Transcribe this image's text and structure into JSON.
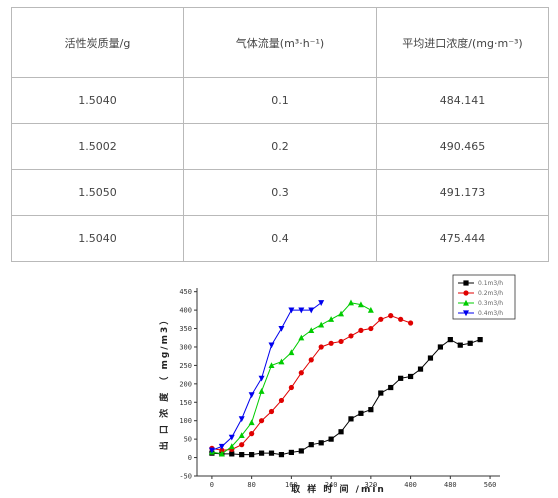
{
  "table": {
    "headers": [
      "活性炭质量/g",
      "气体流量(m³·h⁻¹)",
      "平均进口浓度/(mg·m⁻³)"
    ],
    "rows": [
      [
        "1.5040",
        "0.1",
        "484.141"
      ],
      [
        "1.5002",
        "0.2",
        "490.465"
      ],
      [
        "1.5050",
        "0.3",
        "491.173"
      ],
      [
        "1.5040",
        "0.4",
        "475.444"
      ]
    ]
  },
  "chart_data": {
    "type": "line",
    "xlabel": "取 样 时 间 /min",
    "ylabel": "出 口 浓 度 （ mg/m3）",
    "xlim": [
      -30,
      580
    ],
    "ylim": [
      -50,
      460
    ],
    "xticks": [
      "0",
      "80",
      "160",
      "240",
      "320",
      "400",
      "480",
      "560"
    ],
    "yticks": [
      "-50",
      "0",
      "50",
      "100",
      "150",
      "200",
      "250",
      "300",
      "350",
      "400",
      "450"
    ],
    "legend_position": "top-right",
    "series": [
      {
        "name": "0.1m3/h",
        "color": "#000000",
        "marker": "square",
        "x": [
          0,
          20,
          40,
          60,
          80,
          100,
          120,
          140,
          160,
          180,
          200,
          220,
          240,
          260,
          280,
          300,
          320,
          340,
          360,
          380,
          400,
          420,
          440,
          460,
          480,
          500,
          520,
          540
        ],
        "y": [
          12,
          10,
          10,
          8,
          8,
          12,
          12,
          8,
          14,
          18,
          35,
          40,
          50,
          70,
          105,
          120,
          130,
          175,
          190,
          215,
          220,
          240,
          270,
          300,
          320,
          305,
          310,
          320
        ]
      },
      {
        "name": "0.2m3/h",
        "color": "#e00000",
        "marker": "circle",
        "x": [
          0,
          20,
          40,
          60,
          80,
          100,
          120,
          140,
          160,
          180,
          200,
          220,
          240,
          260,
          280,
          300,
          320,
          340,
          360,
          380,
          400
        ],
        "y": [
          25,
          20,
          22,
          35,
          65,
          100,
          125,
          155,
          190,
          230,
          265,
          300,
          310,
          315,
          330,
          345,
          350,
          375,
          385,
          375,
          365
        ]
      },
      {
        "name": "0.3m3/h",
        "color": "#00cc00",
        "marker": "triangle-up",
        "x": [
          0,
          20,
          40,
          60,
          80,
          100,
          120,
          140,
          160,
          180,
          200,
          220,
          240,
          260,
          280,
          300,
          320
        ],
        "y": [
          15,
          10,
          30,
          60,
          95,
          180,
          250,
          260,
          285,
          325,
          345,
          360,
          375,
          390,
          420,
          415,
          400
        ]
      },
      {
        "name": "0.4m3/h",
        "color": "#0000ee",
        "marker": "triangle-down",
        "x": [
          0,
          20,
          40,
          60,
          80,
          100,
          120,
          140,
          160,
          180,
          200,
          220
        ],
        "y": [
          20,
          30,
          55,
          105,
          170,
          215,
          305,
          350,
          400,
          400,
          400,
          420
        ]
      }
    ]
  }
}
